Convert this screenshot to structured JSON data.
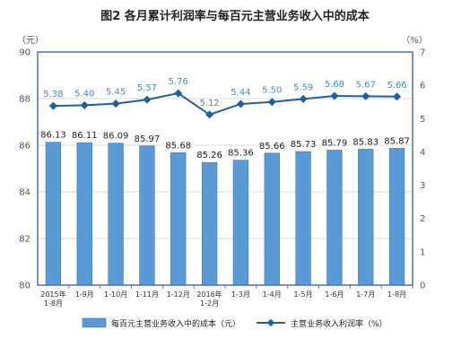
{
  "chart_data": {
    "type": "bar",
    "title": "图2 各月累计利润率与每百元主营业务收入中的成本",
    "y_left_unit": "（元）",
    "y_right_unit": "（%）",
    "y_left": {
      "min": 80,
      "max": 90,
      "step": 2
    },
    "y_right": {
      "min": 0,
      "max": 7,
      "step": 1
    },
    "categories": [
      [
        "2015年",
        "1-8月"
      ],
      [
        "1-9月"
      ],
      [
        "1-10月"
      ],
      [
        "1-11月"
      ],
      [
        "1-12月"
      ],
      [
        "2016年",
        "1-2月"
      ],
      [
        "1-3月"
      ],
      [
        "1-4月"
      ],
      [
        "1-5月"
      ],
      [
        "1-6月"
      ],
      [
        "1-7月"
      ],
      [
        "1-8月"
      ]
    ],
    "series": [
      {
        "name": "每百元主营业务收入中的成本（元）",
        "type": "bar",
        "axis": "left",
        "values": [
          86.13,
          86.11,
          86.09,
          85.97,
          85.68,
          85.26,
          85.36,
          85.66,
          85.73,
          85.79,
          85.83,
          85.87
        ],
        "labels": [
          "86.13",
          "86.11",
          "86.09",
          "85.97",
          "85.68",
          "85.26",
          "85.36",
          "85.66",
          "85.73",
          "85.79",
          "85.83",
          "85.87"
        ]
      },
      {
        "name": "主营业务收入利润率（%）",
        "type": "line",
        "axis": "right",
        "values": [
          5.38,
          5.4,
          5.45,
          5.57,
          5.76,
          5.12,
          5.44,
          5.5,
          5.59,
          5.68,
          5.67,
          5.66
        ],
        "labels": [
          "5.38",
          "5.40",
          "5.45",
          "5.57",
          "5.76",
          "5.12",
          "5.44",
          "5.50",
          "5.59",
          "5.68",
          "5.67",
          "5.66"
        ]
      }
    ],
    "grid": true,
    "legend": "bottom",
    "colors": {
      "bar": "#5b9bd5",
      "bar_border": "#3a78b8",
      "line": "#1f5fa0",
      "line_label": "#3b8fc7",
      "plot_border": "#4472c4",
      "grid": "#d9d9d9"
    }
  }
}
